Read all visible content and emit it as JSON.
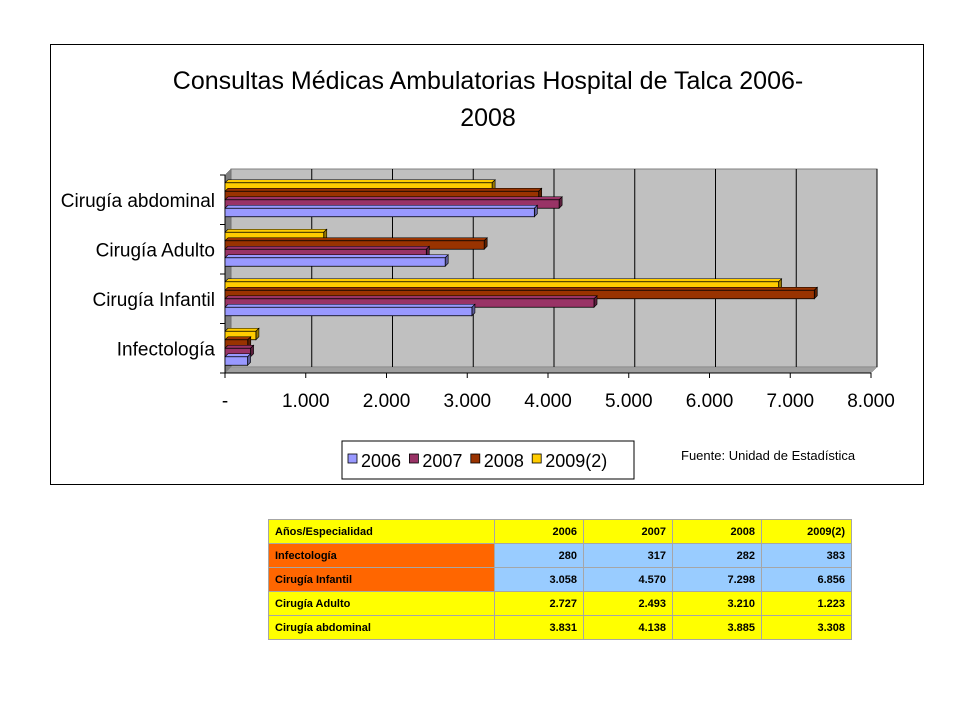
{
  "chart_data": {
    "type": "bar",
    "orientation": "horizontal",
    "title": "Consultas Médicas Ambulatorias Hospital de Talca 2006-2008",
    "title_lines": [
      "Consultas Médicas Ambulatorias Hospital de Talca 2006-",
      "2008"
    ],
    "categories": [
      "Cirugía abdominal",
      "Cirugía Adulto",
      "Cirugía Infantil",
      "Infectología"
    ],
    "series": [
      {
        "name": "2006",
        "color": "#9999ff",
        "values": [
          3831,
          2727,
          3058,
          280
        ]
      },
      {
        "name": "2007",
        "color": "#993366",
        "values": [
          4138,
          2493,
          4570,
          317
        ]
      },
      {
        "name": "2008",
        "color": "#993300",
        "values": [
          3885,
          3210,
          7298,
          282
        ]
      },
      {
        "name": "2009(2)",
        "color": "#ffcc00",
        "values": [
          3308,
          1223,
          6856,
          383
        ]
      }
    ],
    "xlim": [
      0,
      8000
    ],
    "xticks": [
      0,
      1000,
      2000,
      3000,
      4000,
      5000,
      6000,
      7000,
      8000
    ],
    "xtick_labels": [
      "-",
      "1.000",
      "2.000",
      "3.000",
      "4.000",
      "5.000",
      "6.000",
      "7.000",
      "8.000"
    ],
    "grid": true,
    "legend_position": "bottom",
    "plot_background": "#c0c0c0",
    "source_note": "Fuente: Unidad de Estadística"
  },
  "table": {
    "header": [
      "Años/Especialidad",
      "2006",
      "2007",
      "2008",
      "2009(2)"
    ],
    "rows": [
      {
        "label": "Infectología",
        "values": [
          "280",
          "317",
          "282",
          "383"
        ],
        "label_bg": "#ff6600",
        "values_bg": "#99ccff"
      },
      {
        "label": "Cirugía Infantil",
        "values": [
          "3.058",
          "4.570",
          "7.298",
          "6.856"
        ],
        "label_bg": "#ff6600",
        "values_bg": "#99ccff"
      },
      {
        "label": "Cirugía Adulto",
        "values": [
          "2.727",
          "2.493",
          "3.210",
          "1.223"
        ],
        "label_bg": "#ffff00",
        "values_bg": "#ffff00"
      },
      {
        "label": "Cirugía abdominal",
        "values": [
          "3.831",
          "4.138",
          "3.885",
          "3.308"
        ],
        "label_bg": "#ffff00",
        "values_bg": "#ffff00"
      }
    ]
  }
}
